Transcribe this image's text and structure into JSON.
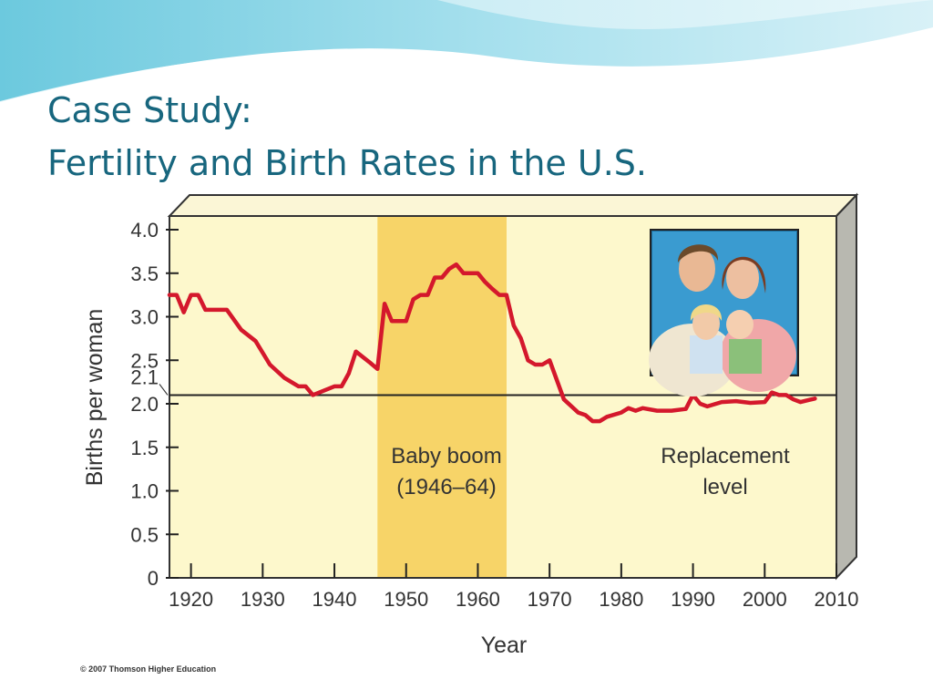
{
  "slide": {
    "title_line1": "Case Study:",
    "title_line2": "Fertility and Birth Rates in the U.S.",
    "accent_color": "#17667e"
  },
  "chart_data": {
    "type": "line",
    "ylabel": "Births per woman",
    "xlabel": "Year",
    "xlim": [
      1917,
      2010
    ],
    "ylim": [
      0,
      4.0
    ],
    "x_ticks": [
      1920,
      1930,
      1940,
      1950,
      1960,
      1970,
      1980,
      1990,
      2000,
      2010
    ],
    "y_ticks": [
      "0",
      "0.5",
      "1.0",
      "1.5",
      "2.0",
      "2.5",
      "3.0",
      "3.5",
      "4.0"
    ],
    "y_ticks_values": [
      0,
      0.5,
      1.0,
      1.5,
      2.0,
      2.5,
      3.0,
      3.5,
      4.0
    ],
    "replacement_level_label": "2.1",
    "replacement_level_value": 2.1,
    "series": [
      {
        "color": "#d4182c",
        "x": [
          1917,
          1918,
          1919,
          1920,
          1921,
          1922,
          1925,
          1927,
          1929,
          1931,
          1933,
          1935,
          1936,
          1937,
          1940,
          1941,
          1942,
          1943,
          1945,
          1946,
          1947,
          1948,
          1950,
          1951,
          1952,
          1953,
          1954,
          1955,
          1956,
          1957,
          1958,
          1960,
          1961,
          1962,
          1963,
          1964,
          1965,
          1966,
          1967,
          1968,
          1969,
          1970,
          1972,
          1974,
          1975,
          1976,
          1977,
          1978,
          1980,
          1981,
          1982,
          1983,
          1985,
          1987,
          1989,
          1990,
          1991,
          1992,
          1994,
          1996,
          1998,
          2000,
          2001,
          2002,
          2003,
          2004,
          2005,
          2007
        ],
        "y": [
          3.25,
          3.25,
          3.05,
          3.25,
          3.25,
          3.08,
          3.08,
          2.85,
          2.72,
          2.45,
          2.3,
          2.2,
          2.2,
          2.1,
          2.2,
          2.2,
          2.35,
          2.6,
          2.47,
          2.4,
          3.15,
          2.95,
          2.95,
          3.2,
          3.25,
          3.25,
          3.45,
          3.45,
          3.55,
          3.6,
          3.5,
          3.5,
          3.4,
          3.32,
          3.25,
          3.25,
          2.9,
          2.75,
          2.5,
          2.45,
          2.45,
          2.5,
          2.05,
          1.9,
          1.87,
          1.8,
          1.8,
          1.85,
          1.9,
          1.95,
          1.92,
          1.95,
          1.92,
          1.92,
          1.94,
          2.1,
          2.0,
          1.97,
          2.02,
          2.03,
          2.01,
          2.02,
          2.13,
          2.1,
          2.1,
          2.05,
          2.02,
          2.06
        ]
      }
    ],
    "baby_boom": {
      "label_line1": "Baby boom",
      "label_line2": "(1946–64)",
      "start": 1946,
      "end": 1964,
      "color": "#f7d468"
    },
    "replacement_annotation": {
      "line1": "Replacement",
      "line2": "level"
    },
    "credit": "© 2007 Thomson Higher Education",
    "plot_background": "#fdf8cc"
  }
}
